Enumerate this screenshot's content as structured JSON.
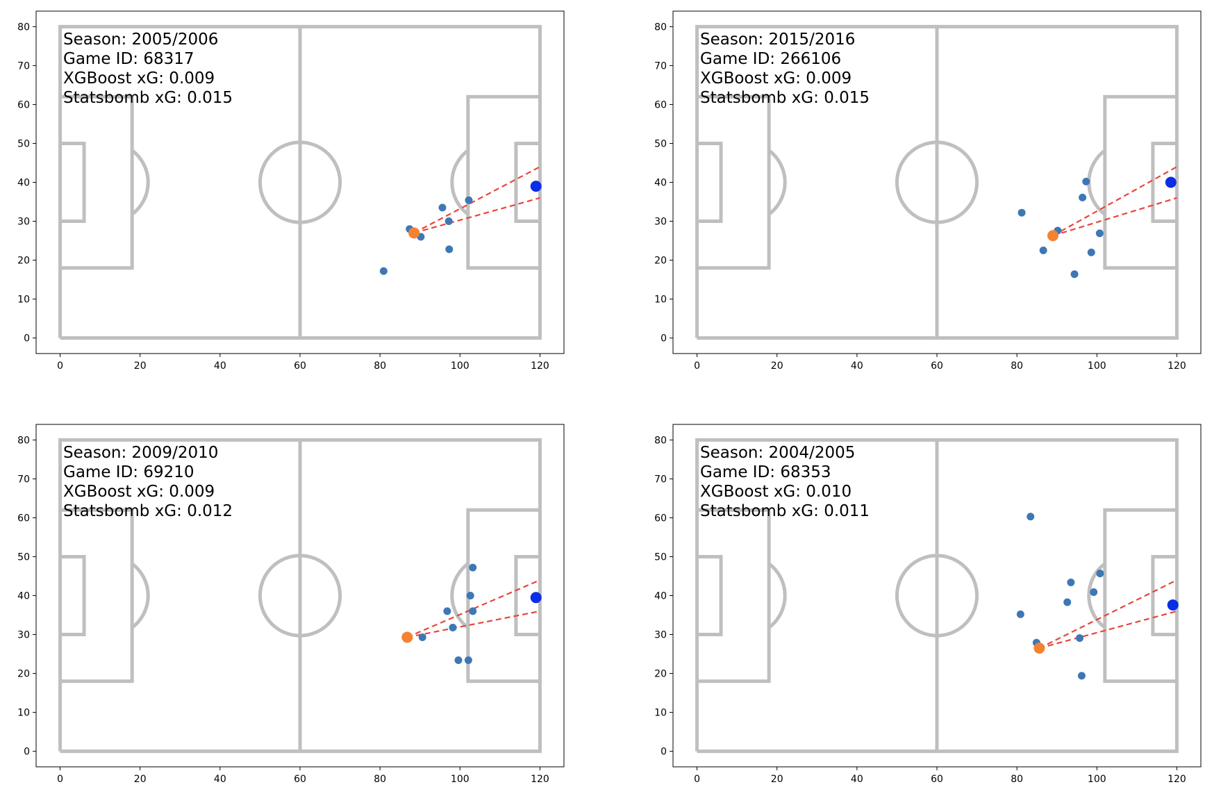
{
  "chart_data": [
    {
      "type": "scatter",
      "info": [
        "Season: 2005/2006",
        "Game ID: 68317",
        "XGBoost xG: 0.009",
        "Statsbomb xG: 0.015"
      ],
      "xlim": [
        -6,
        126
      ],
      "ylim": [
        -4,
        84
      ],
      "x_ticks": [
        0,
        20,
        40,
        60,
        80,
        100,
        120
      ],
      "y_ticks": [
        0,
        10,
        20,
        30,
        40,
        50,
        60,
        70,
        80
      ],
      "shot": [
        88.5,
        27
      ],
      "keeper": [
        119,
        39
      ],
      "players": [
        [
          87.4,
          28
        ],
        [
          90.2,
          26
        ],
        [
          95.6,
          33.5
        ],
        [
          97.2,
          30
        ],
        [
          102.2,
          35.4
        ],
        [
          97.3,
          22.8
        ],
        [
          80.9,
          17.2
        ]
      ]
    },
    {
      "type": "scatter",
      "info": [
        "Season: 2015/2016",
        "Game ID: 266106",
        "XGBoost xG: 0.009",
        "Statsbomb xG: 0.015"
      ],
      "xlim": [
        -6,
        126
      ],
      "ylim": [
        -4,
        84
      ],
      "x_ticks": [
        0,
        20,
        40,
        60,
        80,
        100,
        120
      ],
      "y_ticks": [
        0,
        10,
        20,
        30,
        40,
        50,
        60,
        70,
        80
      ],
      "shot": [
        89,
        26.3
      ],
      "keeper": [
        118.5,
        40
      ],
      "players": [
        [
          81.2,
          32.2
        ],
        [
          97.3,
          40.2
        ],
        [
          96.4,
          36.1
        ],
        [
          90.2,
          27.6
        ],
        [
          86.6,
          22.5
        ],
        [
          100.7,
          26.9
        ],
        [
          98.6,
          22
        ],
        [
          94.4,
          16.4
        ]
      ]
    },
    {
      "type": "scatter",
      "info": [
        "Season: 2009/2010",
        "Game ID: 69210",
        "XGBoost xG: 0.009",
        "Statsbomb xG: 0.012"
      ],
      "xlim": [
        -6,
        126
      ],
      "ylim": [
        -4,
        84
      ],
      "x_ticks": [
        0,
        20,
        40,
        60,
        80,
        100,
        120
      ],
      "y_ticks": [
        0,
        10,
        20,
        30,
        40,
        50,
        60,
        70,
        80
      ],
      "shot": [
        86.8,
        29.3
      ],
      "keeper": [
        119,
        39.5
      ],
      "players": [
        [
          103.2,
          47.2
        ],
        [
          102.6,
          40
        ],
        [
          96.8,
          36
        ],
        [
          103.2,
          36
        ],
        [
          98.2,
          31.8
        ],
        [
          90.6,
          29.3
        ],
        [
          99.6,
          23.4
        ],
        [
          102.1,
          23.4
        ]
      ]
    },
    {
      "type": "scatter",
      "info": [
        "Season: 2004/2005",
        "Game ID: 68353",
        "XGBoost xG: 0.010",
        "Statsbomb xG: 0.011"
      ],
      "xlim": [
        -6,
        126
      ],
      "ylim": [
        -4,
        84
      ],
      "x_ticks": [
        0,
        20,
        40,
        60,
        80,
        100,
        120
      ],
      "y_ticks": [
        0,
        10,
        20,
        30,
        40,
        50,
        60,
        70,
        80
      ],
      "shot": [
        85.6,
        26.5
      ],
      "keeper": [
        119,
        37.6
      ],
      "players": [
        [
          83.4,
          60.3
        ],
        [
          100.8,
          45.7
        ],
        [
          93.5,
          43.4
        ],
        [
          92.6,
          38.3
        ],
        [
          99.2,
          40.9
        ],
        [
          80.9,
          35.2
        ],
        [
          84.9,
          27.9
        ],
        [
          95.7,
          29.1
        ],
        [
          96.2,
          19.4
        ]
      ]
    }
  ],
  "colors": {
    "pitch_lines": "#bfbfbf",
    "players": "#3d78b4",
    "shot": "#f58231",
    "keeper": "#0a2ee6",
    "shot_cone": "#e8453c"
  }
}
